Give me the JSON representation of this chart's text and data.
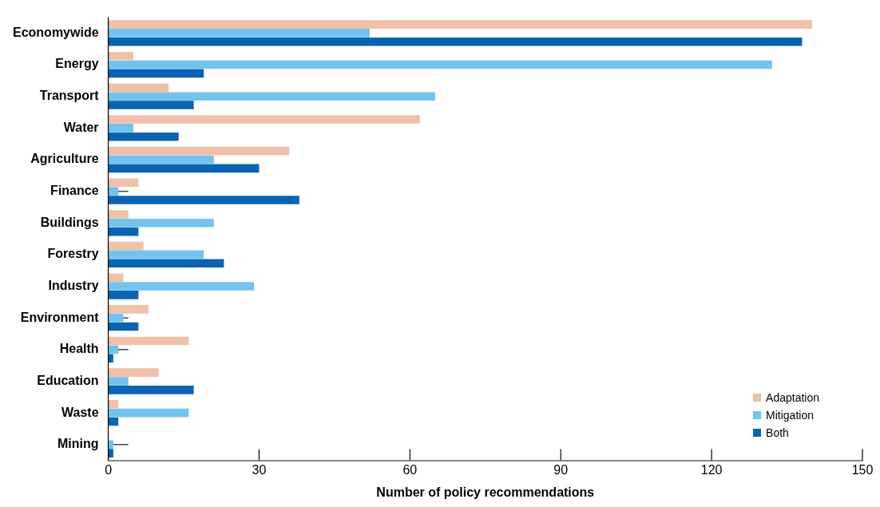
{
  "chart_data": {
    "type": "bar",
    "orientation": "horizontal",
    "xlabel": "Number of policy recommendations",
    "categories": [
      "Economywide",
      "Energy",
      "Transport",
      "Water",
      "Agriculture",
      "Finance",
      "Buildings",
      "Forestry",
      "Industry",
      "Environment",
      "Health",
      "Education",
      "Waste",
      "Mining"
    ],
    "series": [
      {
        "name": "Adaptation",
        "color": "#eec1a8",
        "values": [
          140,
          5,
          12,
          62,
          36,
          6,
          4,
          7,
          3,
          8,
          16,
          10,
          2,
          0
        ]
      },
      {
        "name": "Mitigation",
        "color": "#72c4ee",
        "values": [
          52,
          132,
          65,
          5,
          21,
          2,
          21,
          19,
          29,
          3,
          2,
          4,
          16,
          1
        ],
        "errors": [
          null,
          null,
          null,
          null,
          null,
          [
            2,
            4
          ],
          null,
          null,
          null,
          [
            3,
            4
          ],
          [
            2,
            4
          ],
          null,
          null,
          [
            1,
            4
          ]
        ]
      },
      {
        "name": "Both",
        "color": "#0a64b0",
        "values": [
          138,
          19,
          17,
          14,
          30,
          38,
          6,
          23,
          6,
          6,
          1,
          17,
          2,
          1
        ]
      }
    ],
    "xlim": [
      0,
      150
    ],
    "xticks": [
      0,
      30,
      60,
      90,
      120,
      150
    ],
    "grid": false,
    "legend": "bottom right"
  }
}
